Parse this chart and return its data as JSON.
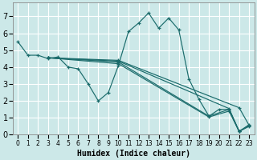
{
  "xlabel": "Humidex (Indice chaleur)",
  "xlim": [
    -0.5,
    23.5
  ],
  "ylim": [
    0,
    7.8
  ],
  "xticks": [
    0,
    1,
    2,
    3,
    4,
    5,
    6,
    7,
    8,
    9,
    10,
    11,
    12,
    13,
    14,
    15,
    16,
    17,
    18,
    19,
    20,
    21,
    22,
    23
  ],
  "yticks": [
    0,
    1,
    2,
    3,
    4,
    5,
    6,
    7
  ],
  "bg_color": "#cce8e8",
  "grid_color": "#ffffff",
  "line_color": "#1a6b6b",
  "main_line": {
    "x": [
      0,
      1,
      2,
      3,
      4,
      5,
      6,
      7,
      8,
      9,
      10,
      11,
      12,
      13,
      14,
      15,
      16,
      17,
      18,
      19,
      20,
      21,
      22,
      23
    ],
    "y": [
      5.5,
      4.7,
      4.7,
      4.5,
      4.6,
      4.0,
      3.9,
      3.0,
      2.0,
      2.5,
      4.1,
      6.1,
      6.6,
      7.2,
      6.3,
      6.9,
      6.2,
      3.3,
      2.1,
      1.1,
      1.5,
      1.5,
      0.2,
      0.6
    ]
  },
  "straight_lines": [
    {
      "x": [
        3,
        10,
        22,
        23
      ],
      "y": [
        4.55,
        4.4,
        1.6,
        0.55
      ]
    },
    {
      "x": [
        3,
        10,
        21,
        22,
        23
      ],
      "y": [
        4.55,
        4.35,
        1.55,
        0.2,
        0.55
      ]
    },
    {
      "x": [
        3,
        10,
        19,
        21,
        22,
        23
      ],
      "y": [
        4.55,
        4.3,
        1.1,
        1.5,
        0.2,
        0.55
      ]
    },
    {
      "x": [
        3,
        10,
        19,
        21,
        22,
        23
      ],
      "y": [
        4.55,
        4.2,
        1.05,
        1.4,
        0.2,
        0.5
      ]
    }
  ],
  "font_size_label": 7,
  "font_size_tick_x": 6,
  "font_size_tick_y": 7
}
